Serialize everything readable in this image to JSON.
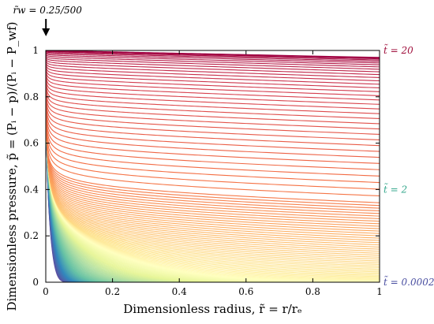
{
  "chart_data": {
    "type": "line",
    "xlabel": "Dimensionless radius, r̃ = r/rₑ",
    "ylabel": "Dimensionless pressure, p̃ = (Pᵢ − p)/(Pᵢ − P_wf)",
    "xlim": [
      0,
      1
    ],
    "ylim": [
      0,
      1
    ],
    "xticks": [
      "0",
      "0.2",
      "0.4",
      "0.6",
      "0.8",
      "1"
    ],
    "yticks": [
      "0",
      "0.2",
      "0.4",
      "0.6",
      "0.8",
      "1"
    ],
    "grid": false,
    "rw": 0.0005,
    "rw_annotation": "r̃w = 0.25/500",
    "t_min": 0.0002,
    "t_max": 20,
    "curve_count": 160,
    "labels": [
      {
        "text": "t̃ = 20",
        "t": 20,
        "color": "#a0103d"
      },
      {
        "text": "t̃ = 2",
        "t": 2,
        "color": "#3aaa8f"
      },
      {
        "text": "t̃ = 0.0002",
        "t": 0.0002,
        "color": "#4a4fa1"
      }
    ],
    "colormap": [
      "#5e4fa2",
      "#3288bd",
      "#66c2a5",
      "#abdda4",
      "#e6f598",
      "#ffffbf",
      "#fee08b",
      "#fdae61",
      "#f46d43",
      "#d53e4f",
      "#9e0142"
    ]
  }
}
